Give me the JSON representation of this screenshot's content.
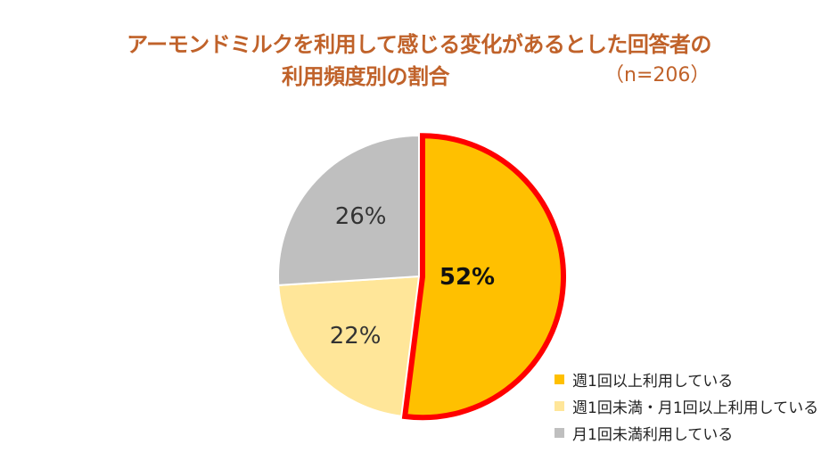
{
  "chart_data": {
    "type": "pie",
    "title": "アーモンドミルクを利用して感じる変化があるとした回答者の",
    "subtitle": "利用頻度別の割合",
    "note": "（n=206）",
    "slices": [
      {
        "name": "週1回以上利用している",
        "value": 52,
        "label": "52%",
        "color": "#FFC000",
        "highlight": true
      },
      {
        "name": "週1回未満・月1回以上利用している",
        "value": 22,
        "label": "22%",
        "color": "#FFE699",
        "highlight": false
      },
      {
        "name": "月1回未満利用している",
        "value": 26,
        "label": "26%",
        "color": "#BFBFBF",
        "highlight": false
      }
    ],
    "highlight_color": "#FF0000",
    "legend_position": "bottom-right"
  }
}
